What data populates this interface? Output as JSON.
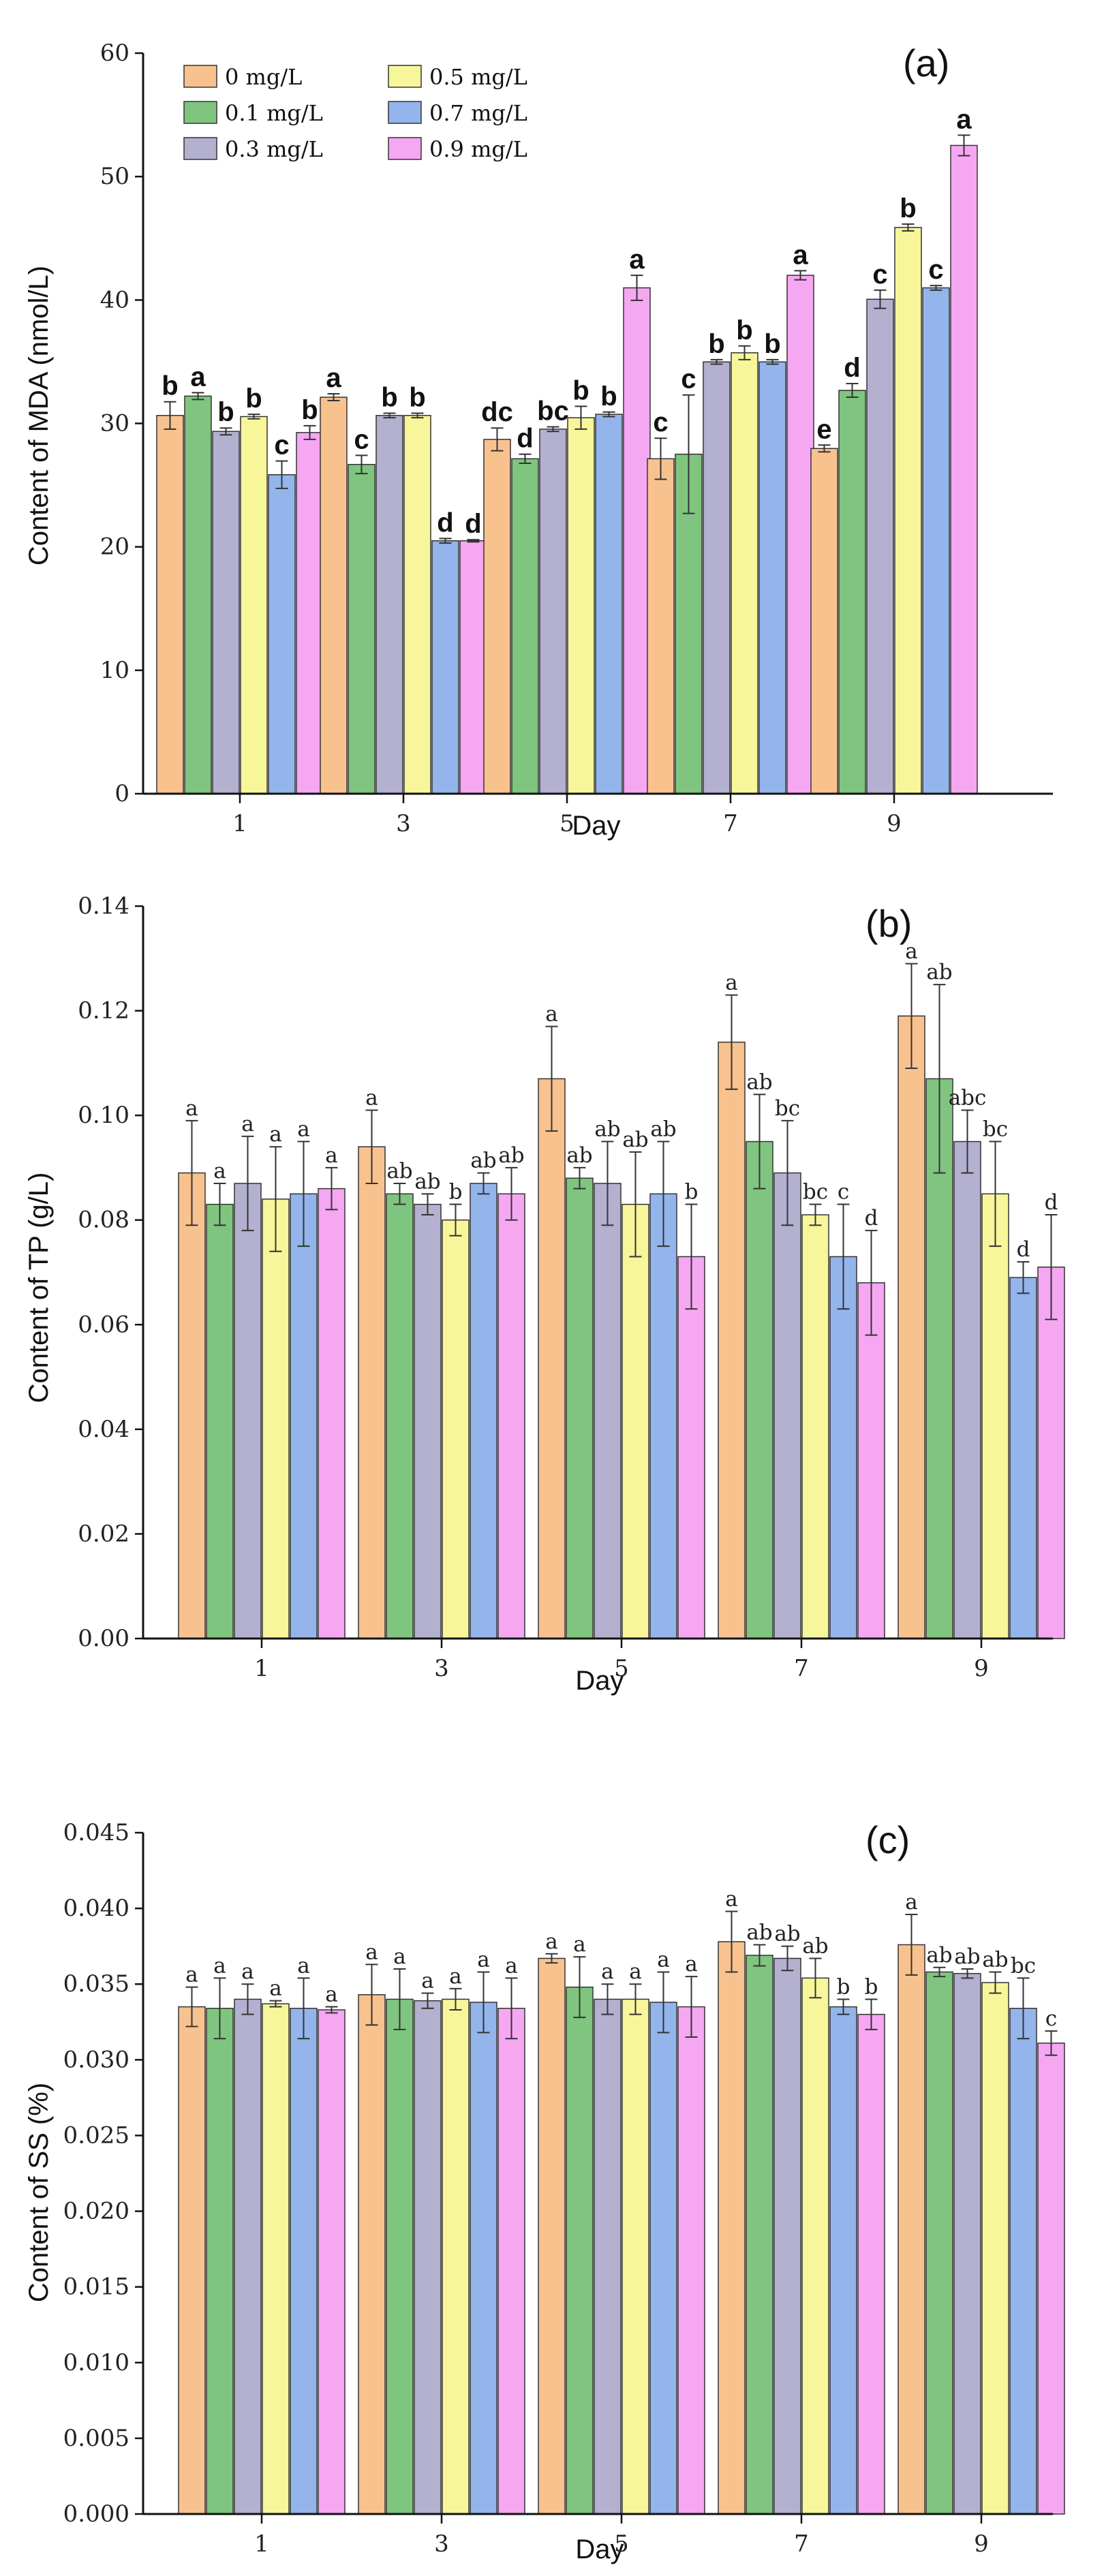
{
  "colors": {
    "series": [
      "#f8c28f",
      "#7fc57f",
      "#b3b0d0",
      "#f7f69a",
      "#93b5ec",
      "#f6a7f2"
    ],
    "axis": "#111111",
    "bar_stroke": "#333333"
  },
  "legend": {
    "entries": [
      "0 mg/L",
      "0.1 mg/L",
      "0.3 mg/L",
      "0.5 mg/L",
      "0.7 mg/L",
      "0.9 mg/L"
    ]
  },
  "chart_data": [
    {
      "type": "bar",
      "panel_label": "(a)",
      "xlabel": "Day",
      "ylabel": "Content of MDA (nmol/L)",
      "categories": [
        "1",
        "3",
        "5",
        "7",
        "9"
      ],
      "ylim": [
        0,
        65
      ],
      "yticks": [
        "0",
        "10",
        "20",
        "30",
        "40",
        "50",
        "60"
      ],
      "legend_position": "top-left",
      "series": [
        {
          "name": "0 mg/L",
          "values": [
            33.2,
            34.8,
            31.1,
            29.4,
            30.3
          ],
          "errors": [
            1.2,
            0.3,
            1.0,
            1.8,
            0.3
          ],
          "letters": [
            "b",
            "a",
            "dc",
            "c",
            "e"
          ]
        },
        {
          "name": "0.1 mg/L",
          "values": [
            34.9,
            28.9,
            29.4,
            29.8,
            35.4
          ],
          "errors": [
            0.3,
            0.8,
            0.4,
            5.2,
            0.6
          ],
          "letters": [
            "a",
            "c",
            "d",
            "c",
            "d"
          ]
        },
        {
          "name": "0.3 mg/L",
          "values": [
            31.8,
            33.2,
            32.0,
            37.9,
            43.4
          ],
          "errors": [
            0.3,
            0.2,
            0.2,
            0.2,
            0.8
          ],
          "letters": [
            "b",
            "b",
            "bc",
            "b",
            "c"
          ]
        },
        {
          "name": "0.5 mg/L",
          "values": [
            33.1,
            33.2,
            33.0,
            38.7,
            49.7
          ],
          "errors": [
            0.2,
            0.2,
            1.0,
            0.6,
            0.3
          ],
          "letters": [
            "b",
            "b",
            "b",
            "b",
            "b"
          ]
        },
        {
          "name": "0.7 mg/L",
          "values": [
            28.0,
            22.2,
            33.3,
            37.9,
            44.4
          ],
          "errors": [
            1.2,
            0.2,
            0.2,
            0.2,
            0.2
          ],
          "letters": [
            "c",
            "d",
            "b",
            "b",
            "c"
          ]
        },
        {
          "name": "0.9 mg/L",
          "values": [
            31.7,
            22.2,
            44.4,
            45.5,
            56.9
          ],
          "errors": [
            0.6,
            0.1,
            1.1,
            0.4,
            0.9
          ],
          "letters": [
            "b",
            "d",
            "a",
            "a",
            "a"
          ]
        }
      ]
    },
    {
      "type": "bar",
      "panel_label": "(b)",
      "xlabel": "Day",
      "ylabel": "Content of TP (g/L)",
      "categories": [
        "1",
        "3",
        "5",
        "7",
        "9"
      ],
      "ylim": [
        0,
        0.14
      ],
      "yticks": [
        "0.00",
        "0.02",
        "0.04",
        "0.06",
        "0.08",
        "0.10",
        "0.12",
        "0.14"
      ],
      "series": [
        {
          "name": "0 mg/L",
          "values": [
            0.089,
            0.094,
            0.107,
            0.114,
            0.119
          ],
          "errors": [
            0.01,
            0.007,
            0.01,
            0.009,
            0.01
          ],
          "letters": [
            "a",
            "a",
            "a",
            "a",
            "a"
          ]
        },
        {
          "name": "0.1 mg/L",
          "values": [
            0.083,
            0.085,
            0.088,
            0.095,
            0.107
          ],
          "errors": [
            0.004,
            0.002,
            0.002,
            0.009,
            0.018
          ],
          "letters": [
            "a",
            "ab",
            "ab",
            "ab",
            "ab"
          ]
        },
        {
          "name": "0.3 mg/L",
          "values": [
            0.087,
            0.083,
            0.087,
            0.089,
            0.095
          ],
          "errors": [
            0.009,
            0.002,
            0.008,
            0.01,
            0.006
          ],
          "letters": [
            "a",
            "ab",
            "ab",
            "bc",
            "abc"
          ]
        },
        {
          "name": "0.5 mg/L",
          "values": [
            0.084,
            0.08,
            0.083,
            0.081,
            0.085
          ],
          "errors": [
            0.01,
            0.003,
            0.01,
            0.002,
            0.01
          ],
          "letters": [
            "a",
            "b",
            "ab",
            "bc",
            "bc"
          ]
        },
        {
          "name": "0.7 mg/L",
          "values": [
            0.085,
            0.087,
            0.085,
            0.073,
            0.069
          ],
          "errors": [
            0.01,
            0.002,
            0.01,
            0.01,
            0.003
          ],
          "letters": [
            "a",
            "ab",
            "ab",
            "c",
            "d"
          ]
        },
        {
          "name": "0.9 mg/L",
          "values": [
            0.086,
            0.085,
            0.073,
            0.068,
            0.071
          ],
          "errors": [
            0.004,
            0.005,
            0.01,
            0.01,
            0.01
          ],
          "letters": [
            "a",
            "ab",
            "b",
            "d",
            "d"
          ]
        }
      ]
    },
    {
      "type": "bar",
      "panel_label": "(c)",
      "xlabel": "Day",
      "ylabel": "Content of SS (%)",
      "categories": [
        "1",
        "3",
        "5",
        "7",
        "9"
      ],
      "ylim": [
        0,
        0.045
      ],
      "yticks": [
        "0.000",
        "0.005",
        "0.010",
        "0.015",
        "0.020",
        "0.025",
        "0.030",
        "0.035",
        "0.040",
        "0.045"
      ],
      "series": [
        {
          "name": "0 mg/L",
          "values": [
            0.0335,
            0.0343,
            0.0367,
            0.0378,
            0.0376
          ],
          "errors": [
            0.0013,
            0.002,
            0.0003,
            0.002,
            0.002
          ],
          "letters": [
            "a",
            "a",
            "a",
            "a",
            "a"
          ]
        },
        {
          "name": "0.1 mg/L",
          "values": [
            0.0334,
            0.034,
            0.0348,
            0.0369,
            0.0358
          ],
          "errors": [
            0.002,
            0.002,
            0.002,
            0.0007,
            0.0003
          ],
          "letters": [
            "a",
            "a",
            "a",
            "ab",
            "ab"
          ]
        },
        {
          "name": "0.3 mg/L",
          "values": [
            0.034,
            0.0339,
            0.034,
            0.0367,
            0.0357
          ],
          "errors": [
            0.001,
            0.0005,
            0.001,
            0.0008,
            0.0003
          ],
          "letters": [
            "a",
            "a",
            "a",
            "ab",
            "ab"
          ]
        },
        {
          "name": "0.5 mg/L",
          "values": [
            0.0337,
            0.034,
            0.034,
            0.0354,
            0.0351
          ],
          "errors": [
            0.0002,
            0.0007,
            0.001,
            0.0013,
            0.0007
          ],
          "letters": [
            "a",
            "a",
            "a",
            "ab",
            "ab"
          ]
        },
        {
          "name": "0.7 mg/L",
          "values": [
            0.0334,
            0.0338,
            0.0338,
            0.0335,
            0.0334
          ],
          "errors": [
            0.002,
            0.002,
            0.002,
            0.0005,
            0.002
          ],
          "letters": [
            "a",
            "a",
            "a",
            "b",
            "bc"
          ]
        },
        {
          "name": "0.9 mg/L",
          "values": [
            0.0333,
            0.0334,
            0.0335,
            0.033,
            0.0311
          ],
          "errors": [
            0.0002,
            0.002,
            0.002,
            0.001,
            0.0008
          ],
          "letters": [
            "a",
            "a",
            "a",
            "b",
            "c"
          ]
        }
      ]
    }
  ]
}
